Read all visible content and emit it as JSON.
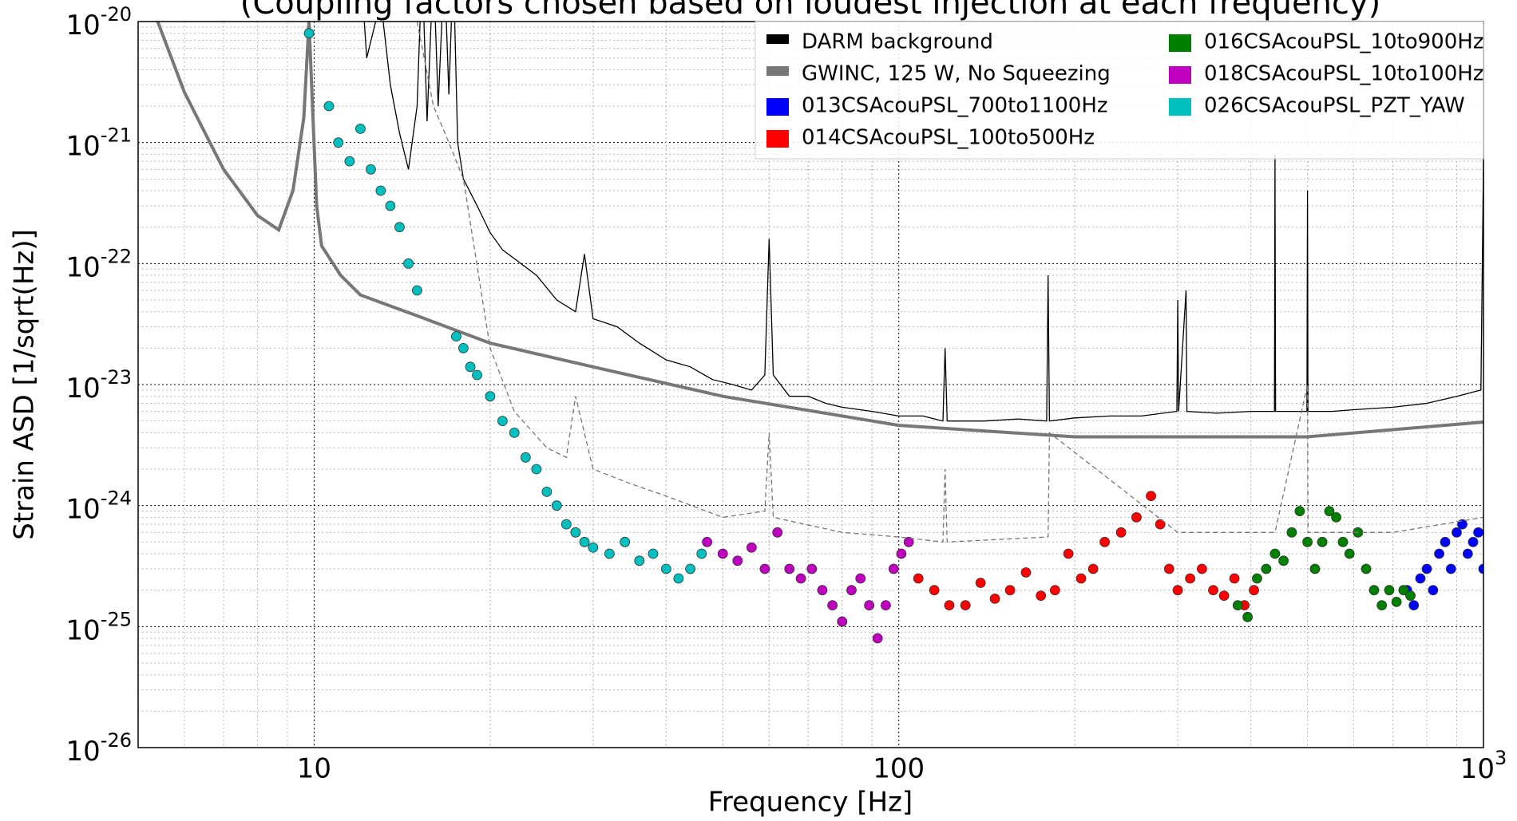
{
  "chart_data": {
    "type": "line",
    "title": "(Coupling factors chosen based on loudest injection at each frequency)",
    "x_label": "Frequency [Hz]",
    "y_label": "Strain ASD [1/sqrt(Hz)]",
    "log_x": true,
    "log_y": true,
    "grid": true,
    "minor_grid": true,
    "legend": "upper right",
    "legend_columns": 2,
    "xlim": [
      5,
      1000
    ],
    "xticks": [
      10,
      100,
      {
        "value": 1000,
        "label": "10",
        "exponent": "3"
      }
    ],
    "ylim": [
      1e-26,
      1e-20
    ],
    "yticks": [
      {
        "value": 1e-26,
        "label": "10",
        "exponent": "-26"
      },
      {
        "value": 1e-25,
        "label": "10",
        "exponent": "-25"
      },
      {
        "value": 1e-24,
        "label": "10",
        "exponent": "-24"
      },
      {
        "value": 1e-23,
        "label": "10",
        "exponent": "-23"
      },
      {
        "value": 1e-22,
        "label": "10",
        "exponent": "-22"
      },
      {
        "value": 1e-21,
        "label": "10",
        "exponent": "-21"
      },
      {
        "value": 1e-20,
        "label": "10",
        "exponent": "-20"
      }
    ],
    "series": [
      {
        "name": "DARM background",
        "type": "line",
        "color": "#000000",
        "x": [
          12,
          12.3,
          12.6,
          13,
          13.5,
          14,
          14.5,
          15,
          15.3,
          15.6,
          16,
          16.3,
          16.7,
          17,
          17.3,
          17.6,
          18,
          19,
          20,
          21,
          22,
          24,
          26,
          28,
          29,
          30,
          33,
          36,
          40,
          44,
          48,
          52,
          56,
          59,
          60,
          61,
          65,
          70,
          75,
          80,
          90,
          100,
          110,
          119,
          120,
          121,
          140,
          160,
          179,
          180,
          181,
          200,
          230,
          260,
          299,
          300,
          301,
          310,
          311,
          350,
          400,
          439,
          440,
          441,
          470,
          499,
          500,
          501,
          550,
          600,
          700,
          800,
          900,
          990,
          1000
        ],
        "values": [
          3e-20,
          5e-21,
          8e-21,
          1.5e-20,
          3e-21,
          1.2e-21,
          6e-22,
          2e-21,
          3e-20,
          1.5e-21,
          3e-20,
          2e-21,
          3e-20,
          2.5e-21,
          3e-20,
          1e-21,
          5e-22,
          3e-22,
          1.8e-22,
          1.3e-22,
          1.1e-22,
          8e-23,
          5e-23,
          4e-23,
          1.2e-22,
          3.5e-23,
          3e-23,
          2.2e-23,
          1.6e-23,
          1.4e-23,
          1.1e-23,
          1e-23,
          9e-24,
          1.2e-23,
          1.6e-22,
          1.2e-23,
          8e-24,
          8e-24,
          7e-24,
          6.5e-24,
          6e-24,
          5.5e-24,
          5.5e-24,
          5e-24,
          2e-23,
          5e-24,
          5e-24,
          5.2e-24,
          5e-24,
          8e-23,
          5e-24,
          5.3e-24,
          5.5e-24,
          5.5e-24,
          6e-24,
          5e-23,
          6e-24,
          6e-23,
          6e-24,
          5.8e-24,
          6e-24,
          6e-24,
          8e-22,
          6e-24,
          6e-24,
          6e-24,
          4e-22,
          6e-24,
          6e-24,
          6.2e-24,
          6.5e-24,
          7e-24,
          8e-24,
          9e-24,
          7e-22
        ]
      },
      {
        "name": "GWINC, 125 W, No Squeezing",
        "type": "line",
        "color": "#777777",
        "x": [
          5,
          5.4,
          6,
          7,
          8,
          8.7,
          9.2,
          9.6,
          9.8,
          10.1,
          10.3,
          11.1,
          12,
          15,
          20,
          30,
          50,
          100,
          200,
          500,
          1000
        ],
        "values": [
          1.5e-20,
          1e-20,
          2.6e-21,
          6e-22,
          2.5e-22,
          1.9e-22,
          4e-22,
          1.6e-21,
          1e-20,
          3e-22,
          1.4e-22,
          8e-23,
          5.5e-23,
          3.7e-23,
          2.2e-23,
          1.4e-23,
          8e-24,
          4.6e-24,
          3.7e-24,
          3.7e-24,
          4.9e-24
        ]
      },
      {
        "name": "013CSAcouPSL_700to1100Hz",
        "type": "scatter",
        "color": "#0000ff",
        "x": [
          740,
          760,
          780,
          800,
          820,
          840,
          860,
          880,
          900,
          920,
          940,
          960,
          980,
          1000
        ],
        "values": [
          2e-25,
          1.5e-25,
          2.5e-25,
          3e-25,
          2e-25,
          4e-25,
          5e-25,
          3e-25,
          6e-25,
          7e-25,
          4e-25,
          5e-25,
          6e-25,
          3e-25
        ]
      },
      {
        "name": "014CSAcouPSL_100to500Hz",
        "type": "scatter",
        "color": "#ff0000",
        "x": [
          108,
          115,
          122,
          130,
          138,
          146,
          155,
          165,
          175,
          185,
          195,
          205,
          215,
          225,
          240,
          255,
          270,
          280,
          290,
          300,
          315,
          330,
          345,
          360,
          375,
          390,
          405
        ],
        "values": [
          2.5e-25,
          2e-25,
          1.5e-25,
          1.5e-25,
          2.3e-25,
          1.7e-25,
          2e-25,
          2.8e-25,
          1.8e-25,
          2e-25,
          4e-25,
          2.5e-25,
          3e-25,
          5e-25,
          6e-25,
          8e-25,
          1.2e-24,
          7e-25,
          3e-25,
          2e-25,
          2.5e-25,
          3e-25,
          2e-25,
          1.8e-25,
          2.5e-25,
          1.5e-25,
          2e-25
        ]
      },
      {
        "name": "016CSAcouPSL_10to900Hz",
        "type": "scatter",
        "color": "#008000",
        "x": [
          380,
          395,
          410,
          425,
          440,
          455,
          470,
          485,
          500,
          515,
          530,
          545,
          560,
          575,
          590,
          610,
          630,
          650,
          670,
          690,
          710,
          730,
          750
        ],
        "values": [
          1.5e-25,
          1.2e-25,
          2.5e-25,
          3e-25,
          4e-25,
          3.5e-25,
          6e-25,
          9e-25,
          5e-25,
          3e-25,
          5e-25,
          9e-25,
          8e-25,
          5e-25,
          4e-25,
          6e-25,
          3e-25,
          2e-25,
          1.5e-25,
          2e-25,
          1.6e-25,
          2e-25,
          1.8e-25
        ]
      },
      {
        "name": "018CSAcouPSL_10to100Hz",
        "type": "scatter",
        "color": "#bf00bf",
        "x": [
          47,
          50,
          53,
          56,
          59,
          62,
          65,
          68,
          71,
          74,
          77,
          80,
          83,
          86,
          89,
          92,
          95,
          98,
          101,
          104
        ],
        "values": [
          5e-25,
          4e-25,
          3.5e-25,
          4.5e-25,
          3e-25,
          6e-25,
          3e-25,
          2.5e-25,
          3e-25,
          2e-25,
          1.5e-25,
          1.1e-25,
          2e-25,
          2.5e-25,
          1.5e-25,
          8e-26,
          1.5e-25,
          3e-25,
          4e-25,
          5e-25
        ]
      },
      {
        "name": "026CSAcouPSL_PZT_YAW",
        "type": "scatter",
        "color": "#00bfbf",
        "x": [
          9.8,
          10.6,
          11,
          11.5,
          12,
          12.5,
          13,
          13.5,
          14,
          14.5,
          15,
          17.5,
          18,
          18.5,
          19,
          20,
          21,
          22,
          23,
          24,
          25,
          26,
          27,
          28,
          29,
          30,
          32,
          34,
          36,
          38,
          40,
          42,
          44,
          46
        ],
        "values": [
          8e-21,
          2e-21,
          1e-21,
          7e-22,
          1.3e-21,
          6e-22,
          4e-22,
          3e-22,
          2e-22,
          1e-22,
          6e-23,
          2.5e-23,
          2e-23,
          1.4e-23,
          1.2e-23,
          8e-24,
          5e-24,
          4e-24,
          2.5e-24,
          2e-24,
          1.3e-24,
          1e-24,
          7e-25,
          6e-25,
          5e-25,
          4.5e-25,
          4e-25,
          5e-25,
          3.5e-25,
          4e-25,
          3e-25,
          2.5e-25,
          3e-25,
          4e-25
        ]
      },
      {
        "type": "line",
        "style": "dashed",
        "color": "#777777",
        "x": [
          15,
          16,
          17,
          18,
          20,
          22,
          25,
          27,
          28,
          30,
          35,
          40,
          50,
          59,
          60,
          61,
          80,
          100,
          119,
          120,
          121,
          180,
          181,
          300,
          440,
          500,
          501,
          700,
          1000
        ],
        "values": [
          1e-20,
          2e-21,
          1e-21,
          5e-22,
          2e-23,
          6e-24,
          3e-24,
          2.5e-24,
          8e-24,
          2e-24,
          1.5e-24,
          1.2e-24,
          8e-25,
          9e-25,
          4e-24,
          8e-25,
          6e-25,
          5.5e-25,
          5e-25,
          2e-24,
          5e-25,
          5.5e-25,
          4e-24,
          6e-25,
          6e-25,
          1e-23,
          6e-25,
          6e-25,
          8e-25
        ]
      }
    ]
  }
}
